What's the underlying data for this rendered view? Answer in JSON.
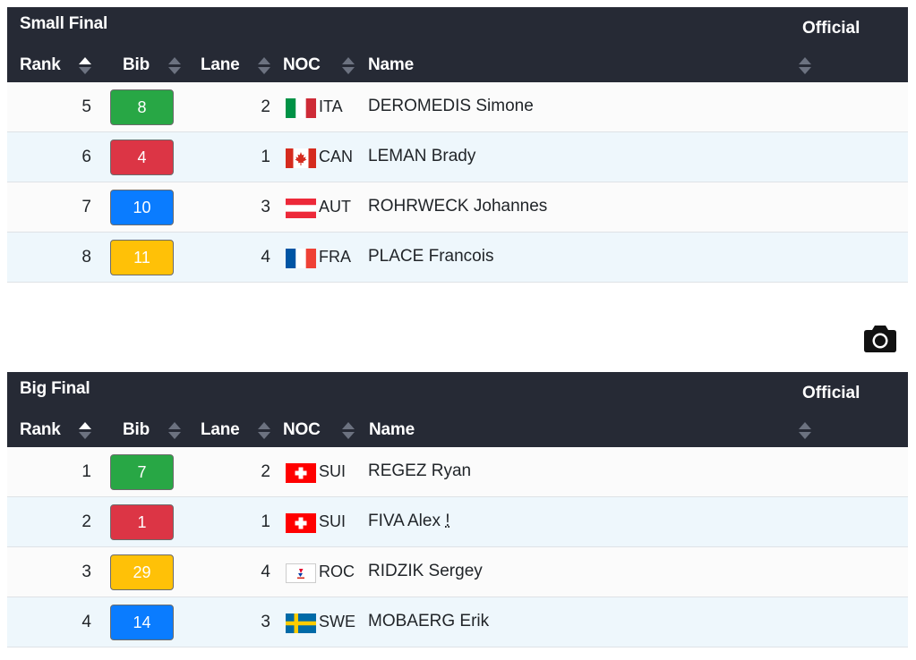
{
  "small_final": {
    "caption": "Small Final",
    "official_label": "Official",
    "columns": {
      "rank": "Rank",
      "bib": "Bib",
      "lane": "Lane",
      "noc": "NOC",
      "name": "Name"
    },
    "rows": [
      {
        "rank": "5",
        "bib": "8",
        "bib_color": "#28a745",
        "lane": "2",
        "flag": "ita-flag-icon",
        "noc": "ITA",
        "name": "DEROMEDIS Simone"
      },
      {
        "rank": "6",
        "bib": "4",
        "bib_color": "#dc3545",
        "lane": "1",
        "flag": "can-flag-icon",
        "noc": "CAN",
        "name": "LEMAN Brady"
      },
      {
        "rank": "7",
        "bib": "10",
        "bib_color": "#0a7cff",
        "lane": "3",
        "flag": "aut-flag-icon",
        "noc": "AUT",
        "name": "ROHRWECK Johannes"
      },
      {
        "rank": "8",
        "bib": "11",
        "bib_color": "#ffc107",
        "lane": "4",
        "flag": "fra-flag-icon",
        "noc": "FRA",
        "name": "PLACE Francois"
      }
    ]
  },
  "big_final": {
    "caption": "Big Final",
    "official_label": "Official",
    "columns": {
      "rank": "Rank",
      "bib": "Bib",
      "lane": "Lane",
      "noc": "NOC",
      "name": "Name"
    },
    "rows": [
      {
        "rank": "1",
        "bib": "7",
        "bib_color": "#28a745",
        "lane": "2",
        "flag": "sui-flag-icon",
        "noc": "SUI",
        "name": "REGEZ Ryan"
      },
      {
        "rank": "2",
        "bib": "1",
        "bib_color": "#dc3545",
        "lane": "1",
        "flag": "sui-flag-icon",
        "noc": "SUI",
        "name": "FIVA Alex",
        "note": "!"
      },
      {
        "rank": "3",
        "bib": "29",
        "bib_color": "#ffc107",
        "lane": "4",
        "flag": "roc-flag-icon",
        "noc": "ROC",
        "name": "RIDZIK Sergey"
      },
      {
        "rank": "4",
        "bib": "14",
        "bib_color": "#0a7cff",
        "lane": "3",
        "flag": "swe-flag-icon",
        "noc": "SWE",
        "name": "MOBAERG Erik"
      }
    ]
  },
  "toolbar": {
    "camera_icon": "camera-icon"
  }
}
